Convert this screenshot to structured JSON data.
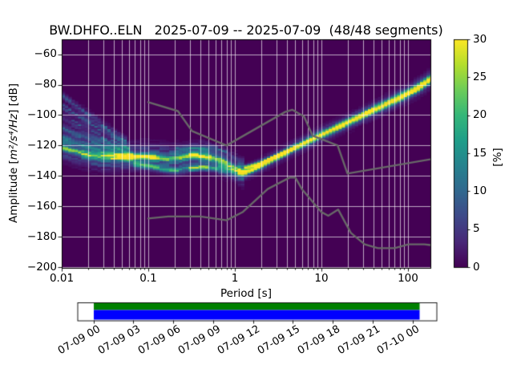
{
  "chart_data": {
    "type": "heatmap",
    "title": "BW.DHFO..ELN   2025-07-09 -- 2025-07-09  (48/48 segments)",
    "xlabel": "Period [s]",
    "ylabel": "Amplitude [m²/s⁴/Hz] [dB]",
    "ylabel_parts": {
      "prefix": "Amplitude [",
      "math": "m²/s⁴/Hz",
      "suffix": "] [dB]"
    },
    "x_axis": {
      "scale": "log",
      "min": 0.01,
      "max": 181.7,
      "major_ticks": [
        0.01,
        0.1,
        1,
        10,
        100
      ],
      "major_tick_labels": [
        "0.01",
        "0.1",
        "1",
        "10",
        "100"
      ],
      "minor_tick_multiples": [
        2,
        3,
        4,
        5,
        6,
        7,
        8,
        9
      ],
      "grid": "major+minor"
    },
    "y_axis": {
      "min": -200.5,
      "max": -50.2,
      "ticks": [
        -60,
        -80,
        -100,
        -120,
        -140,
        -160,
        -180,
        -200
      ],
      "tick_labels": [
        "−60",
        "−80",
        "−100",
        "−120",
        "−140",
        "−160",
        "−180",
        "−200"
      ],
      "grid": "major"
    },
    "colorbar": {
      "label": "[%]",
      "min": 0,
      "max": 30,
      "ticks": [
        0,
        5,
        10,
        15,
        20,
        25,
        30
      ],
      "tick_labels": [
        "0",
        "5",
        "10",
        "15",
        "20",
        "25",
        "30"
      ],
      "colormap": "viridis",
      "viridis_stops": [
        "#440154",
        "#482878",
        "#3e4989",
        "#31688e",
        "#26828e",
        "#1f9e89",
        "#35b779",
        "#6dcd59",
        "#b4de2c",
        "#fde725"
      ]
    },
    "background_color": "#440154",
    "grid_color": "#ffffff",
    "grid_alpha": 0.72,
    "frame_color": "#000000",
    "noise_models": {
      "color": "#686868",
      "line_width": 2.4,
      "nlnm": [
        [
          0.1,
          -168
        ],
        [
          0.17,
          -166.7
        ],
        [
          0.4,
          -166.7
        ],
        [
          0.8,
          -169.2
        ],
        [
          1.24,
          -163.7
        ],
        [
          2.4,
          -148.6
        ],
        [
          4.3,
          -141.1
        ],
        [
          5,
          -141.1
        ],
        [
          6,
          -149
        ],
        [
          10,
          -163.8
        ],
        [
          12,
          -166.2
        ],
        [
          15.6,
          -162.1
        ],
        [
          21.9,
          -177.5
        ],
        [
          31.6,
          -185
        ],
        [
          45,
          -187.5
        ],
        [
          70,
          -187.5
        ],
        [
          101,
          -185
        ],
        [
          154,
          -185
        ],
        [
          181.7,
          -185.5
        ]
      ],
      "nhnm": [
        [
          0.1,
          -91.5
        ],
        [
          0.22,
          -97.4
        ],
        [
          0.32,
          -110.5
        ],
        [
          0.8,
          -120
        ],
        [
          3.8,
          -98
        ],
        [
          4.6,
          -96.5
        ],
        [
          6.3,
          -101
        ],
        [
          7.9,
          -113.5
        ],
        [
          15.4,
          -120
        ],
        [
          20,
          -138.5
        ],
        [
          181.7,
          -129.1
        ]
      ]
    },
    "histogram": {
      "period_bins_per_octave": 8,
      "db_bin_width": 1,
      "components": [
        {
          "name": "fan-streak-1",
          "pts": [
            [
              0.01,
              -87
            ],
            [
              0.055,
              -117
            ]
          ],
          "sigma": 1.6,
          "peak": 6.5,
          "jitter": 0.8,
          "seed": 11
        },
        {
          "name": "fan-streak-2",
          "pts": [
            [
              0.01,
              -94
            ],
            [
              0.06,
              -121
            ]
          ],
          "sigma": 1.6,
          "peak": 6.5,
          "jitter": 0.8,
          "seed": 23
        },
        {
          "name": "fan-streak-3",
          "pts": [
            [
              0.01,
              -101
            ],
            [
              0.065,
              -125
            ]
          ],
          "sigma": 1.6,
          "peak": 7,
          "jitter": 0.8,
          "seed": 37
        },
        {
          "name": "fan-streak-4",
          "pts": [
            [
              0.01,
              -108
            ],
            [
              0.07,
              -128
            ]
          ],
          "sigma": 1.7,
          "peak": 7.5,
          "jitter": 0.75,
          "seed": 41
        },
        {
          "name": "fan-streak-5",
          "pts": [
            [
              0.01,
              -115
            ],
            [
              0.08,
              -131
            ]
          ],
          "sigma": 1.8,
          "peak": 8,
          "jitter": 0.7,
          "seed": 53
        },
        {
          "name": "band-broad",
          "pts": [
            [
              0.01,
              -121
            ],
            [
              0.014,
              -123.5
            ],
            [
              0.02,
              -126
            ],
            [
              0.03,
              -127.5
            ],
            [
              0.05,
              -127.5
            ],
            [
              0.08,
              -127
            ],
            [
              0.12,
              -127.5
            ],
            [
              0.18,
              -129
            ],
            [
              0.25,
              -128
            ],
            [
              0.32,
              -126.5
            ],
            [
              0.45,
              -127
            ],
            [
              0.6,
              -129
            ],
            [
              0.75,
              -131
            ],
            [
              0.9,
              -133.5
            ],
            [
              1.05,
              -135.5
            ],
            [
              1.25,
              -137
            ]
          ],
          "sigma": 5,
          "peak": 9,
          "jitter": 0.7,
          "seed": 7
        },
        {
          "name": "band-core",
          "pts": [
            [
              0.01,
              -121
            ],
            [
              0.014,
              -123.5
            ],
            [
              0.02,
              -126
            ],
            [
              0.03,
              -127.5
            ],
            [
              0.05,
              -127.5
            ],
            [
              0.08,
              -127
            ],
            [
              0.12,
              -127.5
            ],
            [
              0.18,
              -129
            ],
            [
              0.25,
              -128
            ],
            [
              0.32,
              -126.5
            ],
            [
              0.45,
              -127
            ],
            [
              0.6,
              -129
            ],
            [
              0.75,
              -131
            ],
            [
              0.9,
              -133.5
            ],
            [
              1.05,
              -135.5
            ],
            [
              1.15,
              -136.5
            ]
          ],
          "sigma": 1.3,
          "peak": 16,
          "jitter": 0.4,
          "seed": 19,
          "boosts": [
            [
              0.045,
              0.12,
              26
            ],
            [
              0.3,
              0.52,
              25
            ]
          ]
        },
        {
          "name": "upper-wisp",
          "pts": [
            [
              0.2,
              -122
            ],
            [
              0.35,
              -121
            ],
            [
              0.55,
              -121.5
            ],
            [
              0.8,
              -124
            ]
          ],
          "sigma": 1.2,
          "peak": 6,
          "jitter": 0.7,
          "seed": 61
        },
        {
          "name": "lower-branch",
          "pts": [
            [
              0.07,
              -132.5
            ],
            [
              0.1,
              -133.5
            ],
            [
              0.15,
              -135.5
            ],
            [
              0.22,
              -136.5
            ],
            [
              0.3,
              -135
            ],
            [
              0.42,
              -134
            ],
            [
              0.55,
              -134.5
            ],
            [
              0.7,
              -135.5
            ],
            [
              0.85,
              -136.5
            ],
            [
              1.05,
              -137.5
            ]
          ],
          "sigma": 1.4,
          "peak": 13,
          "jitter": 0.55,
          "seed": 29,
          "boosts": [
            [
              0.3,
              0.5,
              18
            ]
          ]
        },
        {
          "name": "ridge-core",
          "pts": [
            [
              1.05,
              -137
            ],
            [
              1.3,
              -137.8
            ],
            [
              1.6,
              -135.8
            ],
            [
              2,
              -133
            ],
            [
              2.6,
              -129.5
            ],
            [
              3.4,
              -126
            ],
            [
              4.5,
              -122.5
            ],
            [
              6,
              -119
            ],
            [
              8,
              -115.5
            ],
            [
              10,
              -112.8
            ],
            [
              13,
              -109.8
            ],
            [
              17,
              -106.8
            ],
            [
              22,
              -103.8
            ],
            [
              28,
              -100.8
            ],
            [
              36,
              -97.8
            ],
            [
              47,
              -94.8
            ],
            [
              60,
              -91.8
            ],
            [
              78,
              -88.8
            ],
            [
              100,
              -85.5
            ],
            [
              130,
              -82
            ],
            [
              160,
              -78.5
            ],
            [
              181.7,
              -76
            ]
          ],
          "sigma": 1.05,
          "sigma_hi": 1.7,
          "peak": 30,
          "jitter": 0.15,
          "seed": 3
        },
        {
          "name": "ridge-halo",
          "pts": [
            [
              1.05,
              -137
            ],
            [
              1.3,
              -137.8
            ],
            [
              1.6,
              -135.8
            ],
            [
              2,
              -133
            ],
            [
              2.6,
              -129.5
            ],
            [
              3.4,
              -126
            ],
            [
              4.5,
              -122.5
            ],
            [
              6,
              -119
            ],
            [
              8,
              -115.5
            ],
            [
              10,
              -112.8
            ],
            [
              13,
              -109.8
            ],
            [
              17,
              -106.8
            ],
            [
              22,
              -103.8
            ],
            [
              28,
              -100.8
            ],
            [
              36,
              -97.8
            ],
            [
              47,
              -94.8
            ],
            [
              60,
              -91.8
            ],
            [
              78,
              -88.8
            ],
            [
              100,
              -85.5
            ],
            [
              130,
              -82
            ],
            [
              160,
              -78.5
            ],
            [
              181.7,
              -76
            ]
          ],
          "sigma": 2.6,
          "sigma_hi": 3.6,
          "peak": 7.5,
          "jitter": 0.45,
          "seed": 47
        },
        {
          "name": "upper-branch",
          "pts": [
            [
              1.25,
              -134.8
            ],
            [
              1.7,
              -132.6
            ],
            [
              2.2,
              -130.2
            ],
            [
              3,
              -127.2
            ],
            [
              4.2,
              -123.8
            ]
          ],
          "sigma": 0.95,
          "peak": 25,
          "jitter": 0.3,
          "seed": 31
        }
      ]
    },
    "timeline": {
      "tick_labels": [
        "07-09 00",
        "07-09 03",
        "07-09 06",
        "07-09 09",
        "07-09 12",
        "07-09 15",
        "07-09 18",
        "07-09 21",
        "07-10 00"
      ],
      "top_bar_color": "#008000",
      "bottom_bar_color": "#0000ff",
      "coverage_percent": 100
    }
  }
}
